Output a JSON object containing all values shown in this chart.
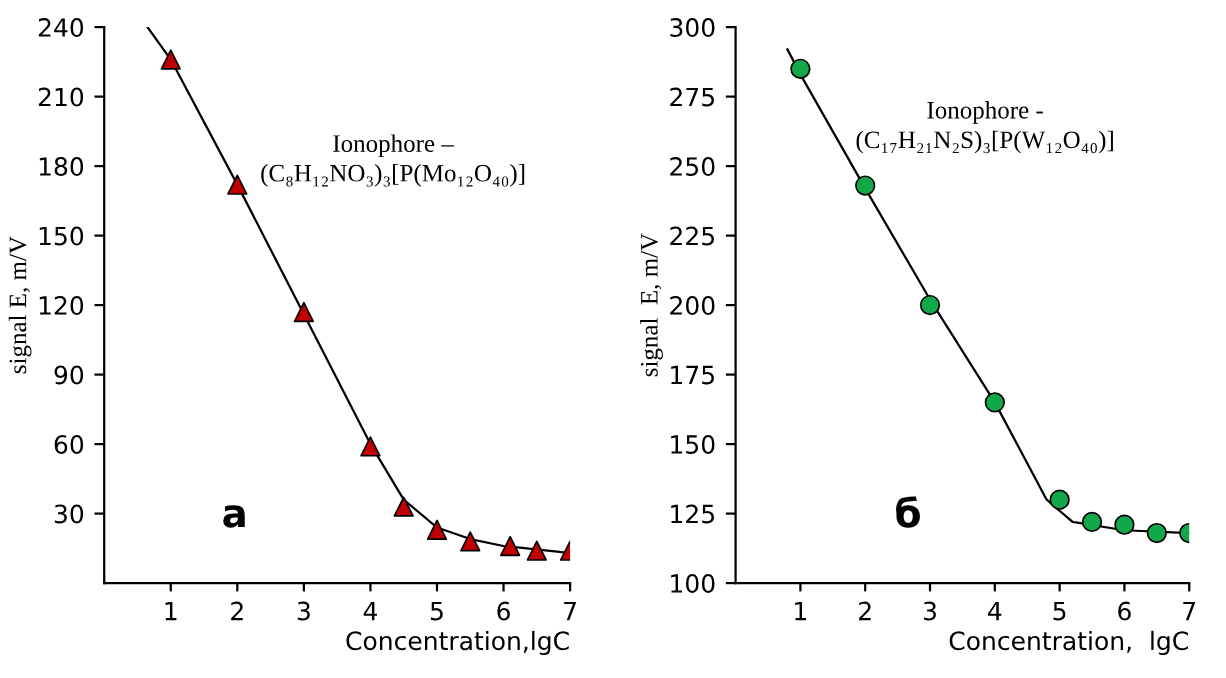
{
  "chart_data": [
    {
      "type": "scatter",
      "xlabel": "Concentration,lgC",
      "ylabel": "signal E, m/V",
      "xlim": [
        0,
        7
      ],
      "ylim": [
        0,
        240
      ],
      "xticks": [
        1,
        2,
        3,
        4,
        5,
        6,
        7
      ],
      "yticks": [
        30,
        60,
        90,
        120,
        150,
        180,
        210,
        240
      ],
      "grid": false,
      "annotations": [
        "Ionophore –\n(C₈H₁₂NO₃)₃[P(Mo₁₂O₄₀)]",
        "a"
      ],
      "series": [
        {
          "type": "scatter",
          "marker": "triangle",
          "color": "#c00000",
          "x": [
            1,
            2,
            3,
            4,
            4.5,
            5,
            5.5,
            6.1,
            6.5,
            7
          ],
          "values": [
            226,
            172,
            117,
            59,
            33,
            23,
            18,
            16,
            14,
            14
          ]
        },
        {
          "type": "line",
          "marker": "none",
          "color": "#000000",
          "x": [
            0.65,
            1,
            2,
            3,
            4,
            4.5,
            5,
            5.5,
            6,
            7
          ],
          "values": [
            240,
            226,
            172,
            116,
            60,
            36,
            24,
            19,
            16,
            13
          ]
        }
      ]
    },
    {
      "type": "scatter",
      "xlabel": "Concentration,  lgC",
      "ylabel": "signal  E, m/V",
      "xlim": [
        0,
        7
      ],
      "ylim": [
        100,
        300
      ],
      "xticks": [
        1,
        2,
        3,
        4,
        5,
        6,
        7
      ],
      "yticks": [
        100,
        125,
        150,
        175,
        200,
        225,
        250,
        275,
        300
      ],
      "grid": false,
      "annotations": [
        "Ionophore -\n(C₁₇H₂₁N₂S)₃[P(W₁₂O₄₀)]",
        "б"
      ],
      "series": [
        {
          "type": "scatter",
          "marker": "circle",
          "color": "#12a84a",
          "x": [
            1,
            2,
            3,
            4,
            5,
            5.5,
            6,
            6.5,
            7
          ],
          "values": [
            285,
            243,
            200,
            165,
            130,
            122,
            121,
            118,
            118
          ]
        },
        {
          "type": "line",
          "marker": "none",
          "color": "#000000",
          "x": [
            0.8,
            1,
            2,
            3,
            4,
            4.8,
            5.2,
            6,
            7
          ],
          "values": [
            292,
            283,
            242,
            202,
            165,
            130,
            122,
            119,
            118
          ]
        }
      ]
    }
  ]
}
